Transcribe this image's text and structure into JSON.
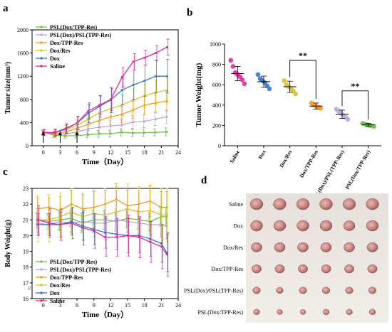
{
  "panels": {
    "a": "a",
    "b": "b",
    "c": "c",
    "d": "d"
  },
  "colors": {
    "psl_dox_tpp": "#6cc24a",
    "psl_dox_psl_tpp": "#b8a6e0",
    "dox_tpp": "#f39a1e",
    "dox_res": "#d8c22a",
    "dox": "#3a74c4",
    "saline": "#e0289c"
  },
  "chart_data": [
    {
      "id": "a",
      "type": "line",
      "xlabel": "Time（Day）",
      "ylabel": "Tumor size(mm³)",
      "xlim": [
        -2,
        24
      ],
      "ylim": [
        0,
        2000
      ],
      "xticks": [
        0,
        3,
        6,
        9,
        12,
        15,
        18,
        21,
        24
      ],
      "yticks": [
        0,
        400,
        800,
        1200,
        1600,
        2000
      ],
      "arrows_at_x": [
        0,
        3,
        6
      ],
      "legend_position": "top-left",
      "x": [
        0,
        2,
        4,
        6,
        8,
        10,
        12,
        14,
        16,
        18,
        20,
        22
      ],
      "series": [
        {
          "name": "PSL(Dox/TPP-Res)",
          "color_key": "psl_dox_tpp",
          "values": [
            230,
            180,
            170,
            175,
            190,
            205,
            210,
            230,
            220,
            225,
            230,
            240
          ],
          "errors": [
            40,
            40,
            40,
            40,
            50,
            60,
            60,
            60,
            60,
            60,
            60,
            70
          ]
        },
        {
          "name": "PSL(Dox)/PSL(TPP-Res)",
          "color_key": "psl_dox_psl_tpp",
          "values": [
            230,
            190,
            200,
            240,
            290,
            320,
            340,
            360,
            410,
            420,
            460,
            500
          ],
          "errors": [
            40,
            50,
            50,
            60,
            80,
            90,
            100,
            100,
            110,
            110,
            110,
            120
          ]
        },
        {
          "name": "Dox/TPP-Res",
          "color_key": "dox_tpp",
          "values": [
            230,
            200,
            240,
            300,
            370,
            440,
            500,
            540,
            620,
            700,
            740,
            770
          ],
          "errors": [
            50,
            50,
            60,
            80,
            110,
            130,
            140,
            140,
            150,
            160,
            160,
            170
          ]
        },
        {
          "name": "Dox/Res",
          "color_key": "dox_res",
          "values": [
            230,
            220,
            280,
            350,
            460,
            570,
            640,
            700,
            790,
            860,
            920,
            960
          ],
          "errors": [
            50,
            60,
            70,
            100,
            130,
            150,
            170,
            180,
            190,
            200,
            210,
            220
          ]
        },
        {
          "name": "Dox",
          "color_key": "dox",
          "values": [
            230,
            230,
            300,
            390,
            560,
            680,
            790,
            960,
            1050,
            1120,
            1200,
            1200
          ],
          "errors": [
            50,
            60,
            80,
            120,
            160,
            190,
            220,
            240,
            260,
            270,
            280,
            290
          ]
        },
        {
          "name": "Saline",
          "color_key": "saline",
          "values": [
            230,
            220,
            290,
            390,
            600,
            700,
            800,
            1180,
            1450,
            1520,
            1600,
            1700
          ],
          "errors": [
            50,
            60,
            80,
            110,
            140,
            160,
            190,
            170,
            140,
            130,
            130,
            140
          ]
        }
      ]
    },
    {
      "id": "b",
      "type": "scatter",
      "ylabel": "Tumor  Weight(mg)",
      "ylim": [
        0,
        1000
      ],
      "yticks": [
        0,
        200,
        400,
        600,
        800,
        1000
      ],
      "categories": [
        "Saline",
        "Dox",
        "Dox/Res",
        "Dox/TPP-Res",
        "PSL(Dox)/PSL(TPP-Res)",
        "PSL(Dox/TPP-Res)"
      ],
      "color_keys": [
        "saline",
        "dox",
        "dox_res",
        "dox_tpp",
        "psl_dox_psl_tpp",
        "psl_dox_tpp"
      ],
      "means": [
        710,
        630,
        580,
        390,
        310,
        205
      ],
      "sds": [
        70,
        55,
        55,
        30,
        40,
        15
      ],
      "points": [
        [
          840,
          780,
          720,
          700,
          680,
          650,
          610
        ],
        [
          700,
          660,
          640,
          620,
          590,
          560
        ],
        [
          640,
          600,
          580,
          560,
          540,
          510
        ],
        [
          420,
          400,
          390,
          380,
          370
        ],
        [
          360,
          340,
          320,
          300,
          280,
          260
        ],
        [
          220,
          215,
          205,
          200,
          195,
          190
        ]
      ],
      "significance": [
        {
          "from": 2,
          "to": 3,
          "label": "**"
        },
        {
          "from": 4,
          "to": 5,
          "label": "**"
        }
      ]
    },
    {
      "id": "c",
      "type": "line",
      "xlabel": "Time（Day）",
      "ylabel": "Body Weight(g)",
      "xlim": [
        -2,
        24
      ],
      "ylim": [
        16,
        23
      ],
      "xticks": [
        0,
        3,
        6,
        9,
        12,
        15,
        18,
        21,
        24
      ],
      "yticks": [
        16,
        17,
        18,
        19,
        20,
        21,
        22,
        23
      ],
      "legend_position": "bottom-left",
      "x": [
        -1,
        1,
        3,
        5,
        7,
        9,
        11,
        13,
        15,
        17,
        19,
        21,
        22
      ],
      "series": [
        {
          "name": "PSL(Dox/TPP-Res)",
          "color_key": "psl_dox_tpp",
          "values": [
            21.0,
            20.9,
            21.0,
            21.1,
            20.8,
            21.0,
            21.0,
            20.9,
            21.1,
            21.0,
            20.9,
            21.2,
            21.2
          ],
          "errors": [
            0.5,
            0.5,
            0.6,
            0.5,
            0.6,
            0.6,
            0.6,
            0.6,
            0.6,
            0.6,
            0.6,
            0.6,
            0.6
          ]
        },
        {
          "name": "PSL(Dox)/PSL(TPP-Res)",
          "color_key": "psl_dox_psl_tpp",
          "values": [
            20.8,
            20.7,
            20.9,
            20.8,
            20.9,
            20.8,
            20.8,
            21.0,
            20.9,
            20.8,
            20.7,
            20.7,
            20.6
          ],
          "errors": [
            0.6,
            0.6,
            0.6,
            0.6,
            0.6,
            0.6,
            0.7,
            0.7,
            0.7,
            0.7,
            0.7,
            0.8,
            0.8
          ]
        },
        {
          "name": "Dox/TPP-Res",
          "color_key": "dox_tpp",
          "values": [
            21.7,
            21.8,
            21.6,
            22.0,
            21.7,
            21.8,
            22.0,
            22.3,
            21.9,
            22.0,
            22.2,
            21.8,
            21.8
          ],
          "errors": [
            0.8,
            0.8,
            0.9,
            0.9,
            0.9,
            1.0,
            1.0,
            1.0,
            1.0,
            1.0,
            1.0,
            1.0,
            1.0
          ]
        },
        {
          "name": "Dox/Res",
          "color_key": "dox_res",
          "values": [
            21.0,
            21.0,
            21.2,
            21.5,
            21.2,
            21.4,
            21.3,
            21.5,
            21.7,
            21.5,
            21.6,
            21.3,
            21.3
          ],
          "errors": [
            1.4,
            1.4,
            1.5,
            1.5,
            1.5,
            1.5,
            1.6,
            1.6,
            1.6,
            1.6,
            1.6,
            1.7,
            1.7
          ]
        },
        {
          "name": "Dox",
          "color_key": "dox",
          "values": [
            20.7,
            20.7,
            20.7,
            20.9,
            20.6,
            20.4,
            20.2,
            20.1,
            20.0,
            20.0,
            19.8,
            19.5,
            18.9
          ],
          "errors": [
            0.7,
            0.7,
            0.8,
            0.8,
            0.9,
            1.0,
            1.0,
            1.0,
            1.1,
            1.1,
            1.1,
            1.2,
            1.2
          ]
        },
        {
          "name": "Saline",
          "color_key": "saline",
          "values": [
            21.0,
            20.8,
            20.7,
            20.8,
            20.5,
            20.3,
            19.9,
            19.9,
            20.0,
            19.9,
            19.6,
            19.3,
            18.8
          ],
          "errors": [
            0.9,
            0.9,
            1.0,
            1.0,
            1.1,
            1.1,
            1.2,
            1.2,
            1.3,
            1.3,
            1.3,
            1.4,
            1.4
          ]
        }
      ]
    }
  ],
  "photo": {
    "rows": [
      "Saline",
      "Dox",
      "Dox/Res",
      "Dox/TPP-Res",
      "PSL(Dox)/PSL(TPP-Res)",
      "PSL(Dox/TPP-Res)"
    ],
    "tumor_sizes": [
      [
        1.0,
        1.0,
        1.0,
        1.0,
        1.0,
        1.0
      ],
      [
        0.95,
        0.95,
        0.95,
        0.95,
        0.9,
        0.95
      ],
      [
        0.85,
        0.85,
        0.85,
        0.85,
        0.85,
        0.85
      ],
      [
        0.75,
        0.75,
        0.75,
        0.75,
        0.75,
        0.75
      ],
      [
        0.6,
        0.55,
        0.6,
        0.6,
        0.6,
        0.6
      ],
      [
        0.5,
        0.45,
        0.45,
        0.5,
        0.5,
        0.5
      ]
    ]
  }
}
